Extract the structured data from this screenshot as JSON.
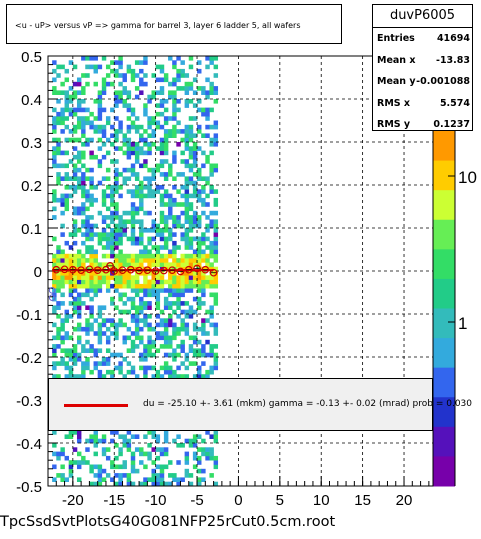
{
  "title": "<u - uP>     versus   vP =>  gamma for barrel 3, layer 6 ladder 5, all wafers",
  "stats": {
    "name": "duvP6005",
    "rows": [
      {
        "key": "Entries",
        "value": "41694"
      },
      {
        "key": "Mean x",
        "value": "-13.83"
      },
      {
        "key": "Mean y",
        "value": "-0.001088"
      },
      {
        "key": "RMS x",
        "value": "5.574"
      },
      {
        "key": "RMS y",
        "value": "0.1237"
      }
    ]
  },
  "fit_text": "du =  -25.10 +-  3.61 (mkm) gamma =   -0.13 +-  0.02 (mrad) prob = 0.030",
  "footer": "TpcSsdSvtPlotsG40G081NFP25rCut0.5cm.root",
  "colors": {
    "fit_line": "#dd0000",
    "profile_marker": "#cc0000",
    "palette": [
      "#ff9900",
      "#ffcc00",
      "#ccff33",
      "#66ee55",
      "#33dd66",
      "#22cc88",
      "#33bbbb",
      "#33aadd",
      "#3366ee",
      "#2233cc",
      "#5511bb",
      "#7700aa"
    ]
  },
  "chart_data": {
    "type": "heatmap",
    "xlim": [
      -23,
      23.5
    ],
    "ylim": [
      -0.5,
      0.5
    ],
    "x_ticks": [
      -20,
      -15,
      -10,
      -5,
      0,
      5,
      10,
      15,
      20
    ],
    "y_ticks": [
      -0.5,
      -0.4,
      -0.3,
      -0.2,
      -0.1,
      0,
      0.1,
      0.2,
      0.3,
      0.4,
      0.5
    ],
    "x_tick_labels": [
      "-20",
      "-15",
      "-10",
      "-5",
      "0",
      "5",
      "10",
      "15",
      "20"
    ],
    "y_tick_labels": [
      "-0.5",
      "-0.4",
      "-0.3",
      "-0.2",
      "-0.1",
      "0",
      "0.1",
      "0.2",
      "0.3",
      "0.4",
      "0.5"
    ],
    "grid": true,
    "occupied_x_range": [
      -22.5,
      -2.5
    ],
    "z_scale": "log",
    "z_ticks": [
      1,
      10
    ],
    "z_tick_labels": [
      "1",
      "10"
    ],
    "profile": {
      "x": [
        -22,
        -21,
        -20,
        -19,
        -18,
        -17,
        -16,
        -15.5,
        -15,
        -14,
        -13,
        -12,
        -11,
        -10,
        -9,
        -8,
        -7,
        -6,
        -5,
        -4,
        -3
      ],
      "y": [
        0.003,
        0.004,
        0.003,
        0.002,
        0.004,
        0.002,
        0.003,
        0.012,
        0.0,
        0.002,
        0.003,
        0.001,
        0.002,
        0.0,
        0.001,
        0.002,
        -0.001,
        0.003,
        0.006,
        0.003,
        -0.004
      ]
    },
    "outliers": [
      {
        "x": -22.5,
        "y": -0.045
      },
      {
        "x": -22.5,
        "y": -0.062
      }
    ],
    "fit": {
      "type": "line",
      "x_range": [
        -22.5,
        -3
      ],
      "y0": 0.002,
      "slope": 0
    }
  }
}
